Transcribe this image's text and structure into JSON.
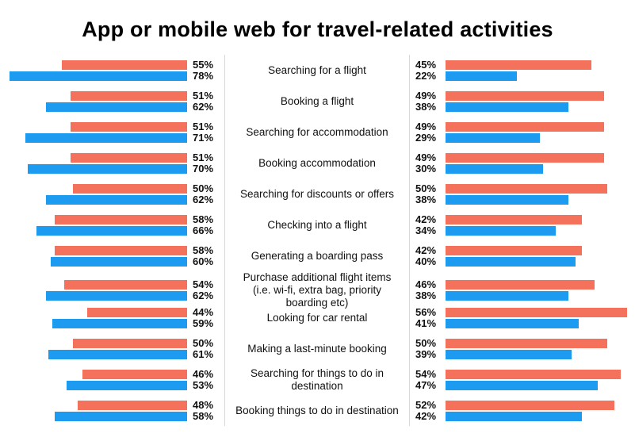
{
  "title": "App or mobile web for travel-related activities",
  "unit": "%",
  "colors": {
    "coral": "#F4715C",
    "blue": "#1D9BF0"
  },
  "chart_data": {
    "type": "bar",
    "variant": "butterfly-diverging",
    "title": "App or mobile web for travel-related activities",
    "grid": false,
    "legend": "none",
    "xlim_left": [
      0,
      80
    ],
    "xlim_right": [
      0,
      57
    ],
    "categories": [
      "Searching for a flight",
      "Booking a flight",
      "Searching for accommodation",
      "Booking accommodation",
      "Searching for discounts or offers",
      "Checking into a flight",
      "Generating a boarding pass",
      "Purchase additional flight items (i.e. wi-fi, extra bag, priority boarding etc)",
      "Looking for car rental",
      "Making a last-minute booking",
      "Searching for things to do in destination",
      "Booking things to do in destination"
    ],
    "series": [
      {
        "name": "left-coral",
        "side": "left",
        "color": "coral",
        "values": [
          55,
          51,
          51,
          51,
          50,
          58,
          58,
          54,
          44,
          50,
          46,
          48
        ]
      },
      {
        "name": "left-blue",
        "side": "left",
        "color": "blue",
        "values": [
          78,
          62,
          71,
          70,
          62,
          66,
          60,
          62,
          59,
          61,
          53,
          58
        ]
      },
      {
        "name": "right-coral",
        "side": "right",
        "color": "coral",
        "values": [
          45,
          49,
          49,
          49,
          50,
          42,
          42,
          46,
          56,
          50,
          54,
          52
        ]
      },
      {
        "name": "right-blue",
        "side": "right",
        "color": "blue",
        "values": [
          22,
          38,
          29,
          30,
          38,
          34,
          40,
          38,
          41,
          39,
          47,
          42
        ]
      }
    ]
  }
}
